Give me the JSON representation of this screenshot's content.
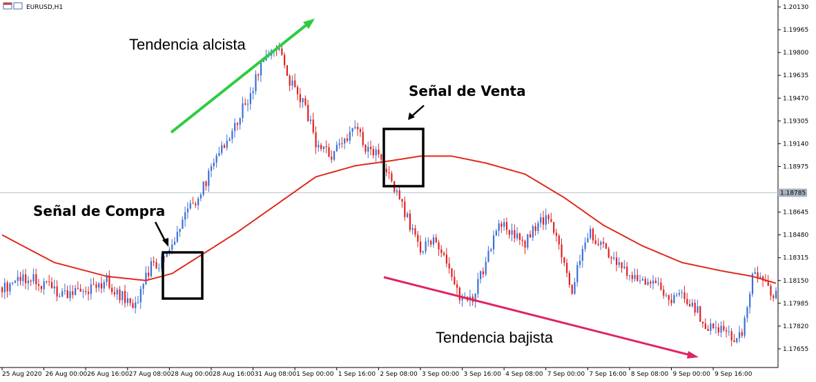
{
  "header": {
    "symbol": "EURUSD,H1"
  },
  "colors": {
    "bull": "#3b6fd6",
    "bear": "#e02020",
    "ma": "#e02a1a",
    "arrow_up": "#2ecc40",
    "arrow_down": "#e0245e",
    "grid": "#b9c7cc"
  },
  "chart_data": {
    "type": "candlestick",
    "title": "",
    "xlabel": "",
    "ylabel": "",
    "ylim": [
      1.1752,
      1.2018
    ],
    "current_price": 1.18785,
    "y_ticks": [
      1.2013,
      1.19965,
      1.198,
      1.19635,
      1.1947,
      1.19305,
      1.1914,
      1.18975,
      1.18645,
      1.1848,
      1.18315,
      1.1815,
      1.17985,
      1.1782,
      1.17655
    ],
    "y_tick_labels": [
      "1.20130",
      "1.19965",
      "1.19800",
      "1.19635",
      "1.19470",
      "1.19305",
      "1.19140",
      "1.18975",
      "1.18645",
      "1.18480",
      "1.18315",
      "1.18150",
      "1.17985",
      "1.17820",
      "1.17655"
    ],
    "current_price_label": "1.18785",
    "x_tick_labels": [
      "25 Aug 2020",
      "26 Aug 00:00",
      "26 Aug 16:00",
      "27 Aug 08:00",
      "28 Aug 00:00",
      "28 Aug 16:00",
      "31 Aug 08:00",
      "1 Sep 00:00",
      "1 Sep 16:00",
      "2 Sep 08:00",
      "3 Sep 00:00",
      "3 Sep 16:00",
      "4 Sep 08:00",
      "7 Sep 00:00",
      "7 Sep 16:00",
      "8 Sep 08:00",
      "9 Sep 00:00",
      "9 Sep 16:00"
    ],
    "price_path": [
      [
        0,
        1.181
      ],
      [
        10,
        1.1818
      ],
      [
        20,
        1.1808
      ],
      [
        30,
        1.1805
      ],
      [
        40,
        1.1815
      ],
      [
        50,
        1.1795
      ],
      [
        57,
        1.1825
      ],
      [
        62,
        1.183
      ],
      [
        66,
        1.1845
      ],
      [
        70,
        1.1862
      ],
      [
        75,
        1.1875
      ],
      [
        80,
        1.1895
      ],
      [
        88,
        1.1925
      ],
      [
        95,
        1.195
      ],
      [
        100,
        1.1975
      ],
      [
        105,
        1.1985
      ],
      [
        110,
        1.196
      ],
      [
        115,
        1.1945
      ],
      [
        120,
        1.1915
      ],
      [
        125,
        1.1905
      ],
      [
        130,
        1.1912
      ],
      [
        135,
        1.1925
      ],
      [
        140,
        1.1908
      ],
      [
        145,
        1.1905
      ],
      [
        150,
        1.188
      ],
      [
        155,
        1.186
      ],
      [
        160,
        1.1835
      ],
      [
        165,
        1.1845
      ],
      [
        170,
        1.183
      ],
      [
        175,
        1.1805
      ],
      [
        180,
        1.18
      ],
      [
        185,
        1.183
      ],
      [
        190,
        1.1855
      ],
      [
        195,
        1.185
      ],
      [
        200,
        1.1842
      ],
      [
        205,
        1.1858
      ],
      [
        210,
        1.186
      ],
      [
        215,
        1.1825
      ],
      [
        218,
        1.1805
      ],
      [
        220,
        1.183
      ],
      [
        225,
        1.1848
      ],
      [
        230,
        1.184
      ],
      [
        235,
        1.183
      ],
      [
        240,
        1.182
      ],
      [
        245,
        1.1815
      ],
      [
        250,
        1.1812
      ],
      [
        255,
        1.18
      ],
      [
        260,
        1.1805
      ],
      [
        265,
        1.1795
      ],
      [
        270,
        1.178
      ],
      [
        275,
        1.178
      ],
      [
        280,
        1.177
      ],
      [
        283,
        1.1775
      ],
      [
        287,
        1.182
      ],
      [
        292,
        1.1812
      ],
      [
        296,
        1.1805
      ]
    ],
    "ma_path": [
      [
        0,
        1.1848
      ],
      [
        20,
        1.1828
      ],
      [
        40,
        1.1818
      ],
      [
        55,
        1.1815
      ],
      [
        65,
        1.182
      ],
      [
        75,
        1.1832
      ],
      [
        90,
        1.185
      ],
      [
        105,
        1.187
      ],
      [
        120,
        1.189
      ],
      [
        135,
        1.1898
      ],
      [
        150,
        1.1902
      ],
      [
        160,
        1.1905
      ],
      [
        172,
        1.1905
      ],
      [
        185,
        1.19
      ],
      [
        200,
        1.1892
      ],
      [
        215,
        1.1875
      ],
      [
        230,
        1.1855
      ],
      [
        245,
        1.184
      ],
      [
        260,
        1.1828
      ],
      [
        275,
        1.1822
      ],
      [
        287,
        1.1818
      ],
      [
        296,
        1.1813
      ]
    ],
    "annotations": [
      {
        "text": "Tendencia alcista",
        "style": "normal"
      },
      {
        "text": "Señal de Venta",
        "style": "bold"
      },
      {
        "text": "Señal de Compra",
        "style": "bold"
      },
      {
        "text": "Tendencia bajista",
        "style": "normal"
      }
    ]
  }
}
